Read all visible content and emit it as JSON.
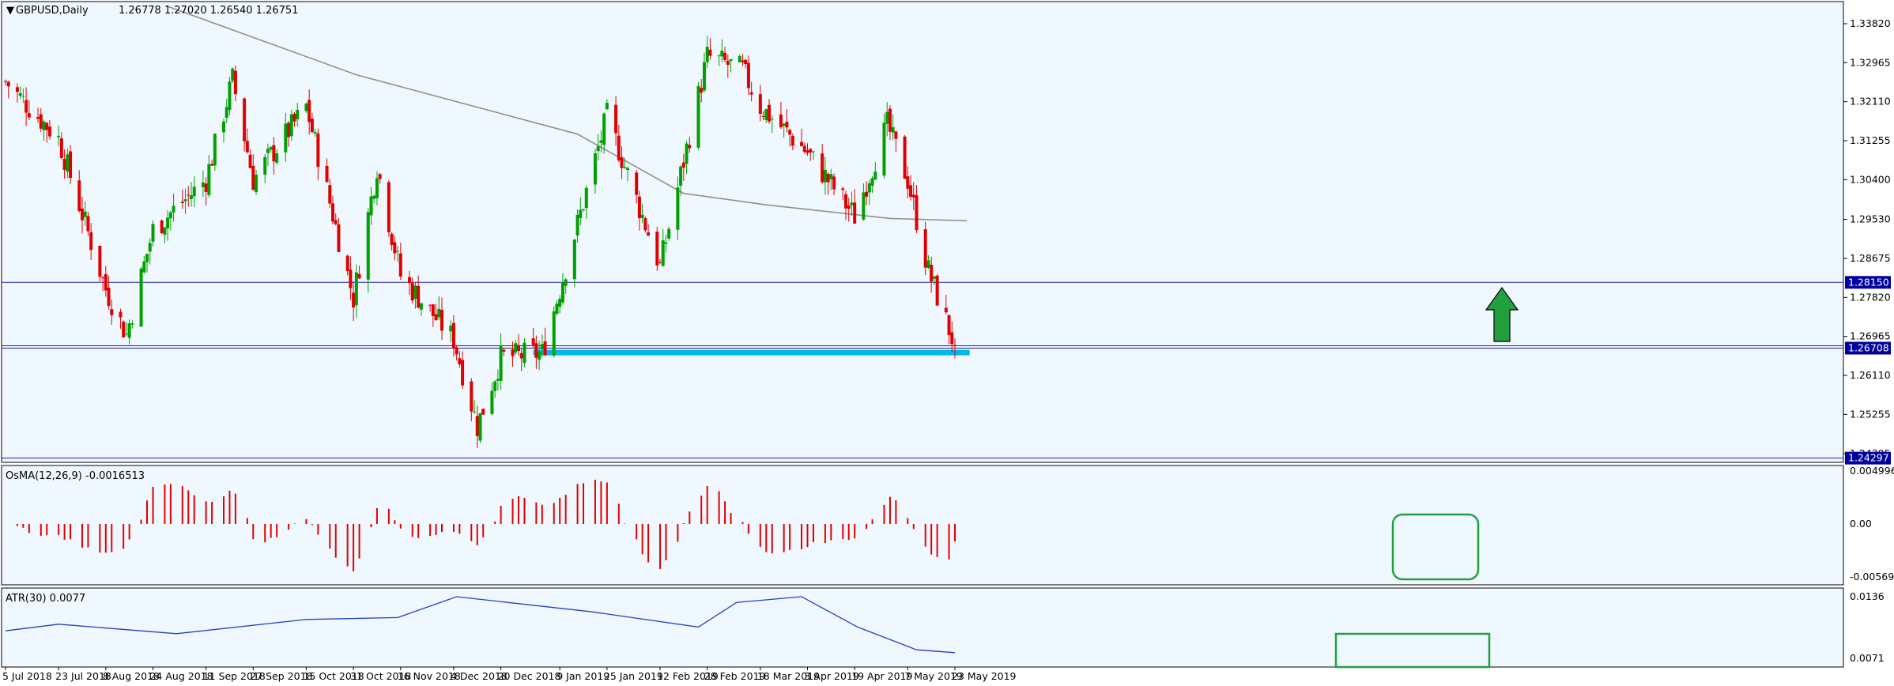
{
  "header": {
    "symbol": "GBPUSD,Daily",
    "ohlc": "1.26778 1.27020 1.26540 1.26751"
  },
  "colors": {
    "background": "#F0F8FF",
    "bull_candle": "#00A000",
    "bear_candle": "#E00000",
    "moving_average": "#909090",
    "horizontal_line": "#2020A0",
    "support_zone": "#00B8E8",
    "arrow": "#22A040",
    "osma_bars": "#E00000",
    "atr_line": "#2040C0",
    "highlight_box": "#22A040",
    "price_label_bg": "#0000A0"
  },
  "chart_data": [
    {
      "type": "candlestick",
      "panel": "price",
      "title": "GBPUSD,Daily",
      "price_axis_ticks": [
        "1.33820",
        "1.32965",
        "1.32110",
        "1.31255",
        "1.30400",
        "1.29530",
        "1.28675",
        "1.27820",
        "1.26965",
        "1.26110",
        "1.25255",
        "1.24395"
      ],
      "ylim": [
        1.242,
        1.34
      ],
      "horizontal_lines": [
        {
          "value": 1.2815,
          "label": "1.28150"
        },
        {
          "value": 1.26708,
          "label": "1.26708"
        },
        {
          "value": 1.24297,
          "label": "1.24297"
        }
      ],
      "support_zone": {
        "from": 1.2655,
        "to": 1.2667
      },
      "arrow": "up",
      "candles_approx": [
        {
          "date": "2018-07-05",
          "o": 1.322,
          "h": 1.329,
          "l": 1.319,
          "c": 1.3255
        },
        {
          "date": "2018-07-23",
          "o": 1.31,
          "h": 1.318,
          "l": 1.305,
          "c": 1.313
        },
        {
          "date": "2018-08-08",
          "o": 1.288,
          "h": 1.293,
          "l": 1.279,
          "c": 1.28
        },
        {
          "date": "2018-08-15",
          "o": 1.274,
          "h": 1.276,
          "l": 1.266,
          "c": 1.27
        },
        {
          "date": "2018-08-24",
          "o": 1.288,
          "h": 1.296,
          "l": 1.284,
          "c": 1.293
        },
        {
          "date": "2018-09-11",
          "o": 1.299,
          "h": 1.308,
          "l": 1.296,
          "c": 1.304
        },
        {
          "date": "2018-09-20",
          "o": 1.315,
          "h": 1.329,
          "l": 1.313,
          "c": 1.326
        },
        {
          "date": "2018-09-27",
          "o": 1.308,
          "h": 1.31,
          "l": 1.302,
          "c": 1.304
        },
        {
          "date": "2018-10-15",
          "o": 1.315,
          "h": 1.325,
          "l": 1.313,
          "c": 1.32
        },
        {
          "date": "2018-10-31",
          "o": 1.275,
          "h": 1.28,
          "l": 1.27,
          "c": 1.278
        },
        {
          "date": "2018-11-08",
          "o": 1.31,
          "h": 1.317,
          "l": 1.305,
          "c": 1.307
        },
        {
          "date": "2018-11-16",
          "o": 1.282,
          "h": 1.289,
          "l": 1.279,
          "c": 1.283
        },
        {
          "date": "2018-12-04",
          "o": 1.272,
          "h": 1.274,
          "l": 1.267,
          "c": 1.269
        },
        {
          "date": "2018-12-12",
          "o": 1.255,
          "h": 1.264,
          "l": 1.248,
          "c": 1.25
        },
        {
          "date": "2018-12-20",
          "o": 1.262,
          "h": 1.268,
          "l": 1.261,
          "c": 1.265
        },
        {
          "date": "2019-01-03",
          "o": 1.27,
          "h": 1.276,
          "l": 1.24,
          "c": 1.266
        },
        {
          "date": "2019-01-09",
          "o": 1.275,
          "h": 1.283,
          "l": 1.273,
          "c": 1.28
        },
        {
          "date": "2019-01-25",
          "o": 1.31,
          "h": 1.321,
          "l": 1.305,
          "c": 1.318
        },
        {
          "date": "2019-02-12",
          "o": 1.288,
          "h": 1.291,
          "l": 1.278,
          "c": 1.285
        },
        {
          "date": "2019-02-28",
          "o": 1.32,
          "h": 1.335,
          "l": 1.318,
          "c": 1.331
        },
        {
          "date": "2019-03-12",
          "o": 1.315,
          "h": 1.338,
          "l": 1.3,
          "c": 1.328
        },
        {
          "date": "2019-03-18",
          "o": 1.326,
          "h": 1.33,
          "l": 1.318,
          "c": 1.32
        },
        {
          "date": "2019-04-03",
          "o": 1.315,
          "h": 1.32,
          "l": 1.308,
          "c": 1.31
        },
        {
          "date": "2019-04-19",
          "o": 1.298,
          "h": 1.301,
          "l": 1.29,
          "c": 1.296
        },
        {
          "date": "2019-04-30",
          "o": 1.305,
          "h": 1.318,
          "l": 1.304,
          "c": 1.316
        },
        {
          "date": "2019-05-07",
          "o": 1.31,
          "h": 1.313,
          "l": 1.302,
          "c": 1.304
        },
        {
          "date": "2019-05-14",
          "o": 1.289,
          "h": 1.29,
          "l": 1.282,
          "c": 1.284
        },
        {
          "date": "2019-05-23",
          "o": 1.26778,
          "h": 1.2702,
          "l": 1.2654,
          "c": 1.26751
        }
      ]
    },
    {
      "type": "bar",
      "panel": "oscillator",
      "title": "OsMA(12,26,9) -0.0016513",
      "indicator": "OsMA(12,26,9)",
      "last_value": -0.0016513,
      "axis_ticks": [
        "0.0049962",
        "0.00",
        "-0.0056946"
      ],
      "ylim": [
        -0.0056946,
        0.0049962
      ]
    },
    {
      "type": "line",
      "panel": "indicator",
      "title": "ATR(30) 0.0077",
      "indicator": "ATR(30)",
      "last_value": 0.0077,
      "axis_ticks": [
        "0.0136",
        "0.0071"
      ],
      "ylim": [
        0.0071,
        0.0136
      ]
    }
  ],
  "x_axis_labels": [
    "5 Jul 2018",
    "23 Jul 2018",
    "8 Aug 2018",
    "24 Aug 2018",
    "11 Sep 2018",
    "27 Sep 2018",
    "15 Oct 2018",
    "31 Oct 2018",
    "16 Nov 2018",
    "4 Dec 2018",
    "20 Dec 2018",
    "9 Jan 2019",
    "25 Jan 2019",
    "12 Feb 2019",
    "28 Feb 2019",
    "18 Mar 2019",
    "3 Apr 2019",
    "19 Apr 2019",
    "7 May 2019",
    "23 May 2019"
  ]
}
